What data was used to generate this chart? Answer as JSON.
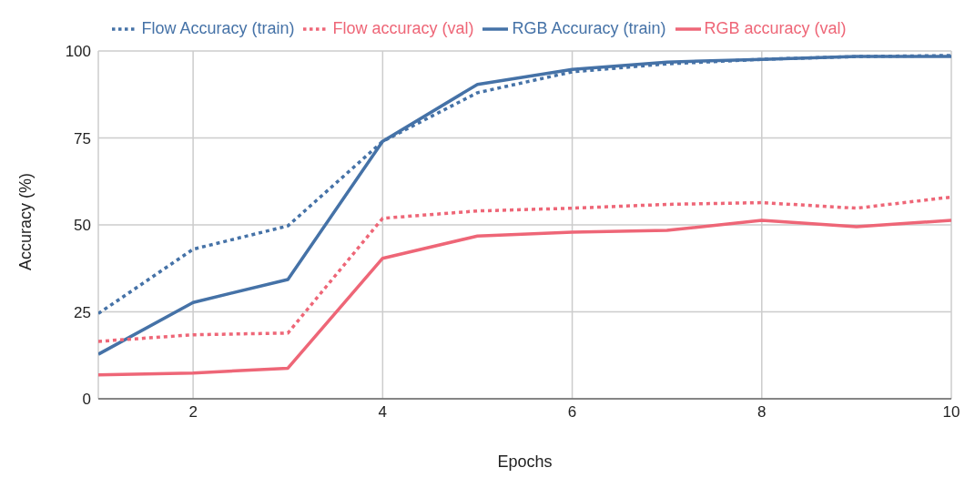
{
  "chart_data": {
    "type": "line",
    "xlabel": "Epochs",
    "ylabel": "Accuracy (%)",
    "x": [
      1,
      2,
      3,
      4,
      5,
      6,
      7,
      8,
      9,
      10
    ],
    "series": [
      {
        "name": "Flow Accuracy (train)",
        "color": "#4572a7",
        "line_style": "dotted",
        "values": [
          24.5,
          43,
          49.7,
          74,
          88,
          94,
          96.3,
          97.6,
          98.4,
          98.7
        ]
      },
      {
        "name": "RGB Accuracy (train)",
        "color": "#4572a7",
        "line_style": "solid",
        "values": [
          12.8,
          27.7,
          34.3,
          74,
          90.4,
          94.7,
          96.8,
          97.6,
          98.4,
          98.4
        ]
      },
      {
        "name": "Flow accuracy (val)",
        "color": "#ee6677",
        "line_style": "dotted",
        "values": [
          16.5,
          18.4,
          18.9,
          51.9,
          54,
          54.8,
          55.9,
          56.4,
          54.8,
          58
        ]
      },
      {
        "name": "RGB accuracy (val)",
        "color": "#ee6677",
        "line_style": "solid",
        "values": [
          6.9,
          7.4,
          8.8,
          40.4,
          46.8,
          47.9,
          48.4,
          51.3,
          49.5,
          51.3
        ]
      }
    ],
    "xlim": [
      1,
      10
    ],
    "xticks": [
      2,
      4,
      6,
      8,
      10
    ],
    "ylim": [
      0,
      100
    ],
    "yticks": [
      0,
      25,
      50,
      75,
      100
    ],
    "grid": true,
    "legend": "top",
    "marker": "none"
  }
}
